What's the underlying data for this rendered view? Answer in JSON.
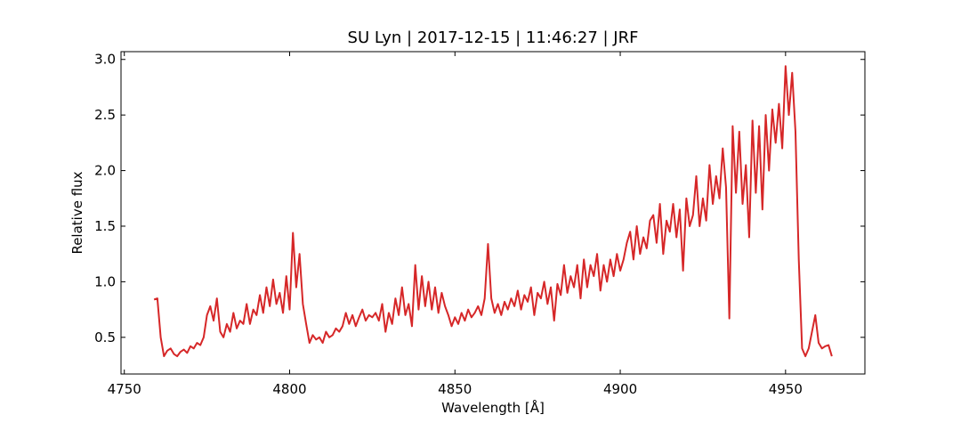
{
  "chart_data": {
    "type": "line",
    "title": "SU Lyn | 2017-12-15 | 11:46:27 | JRF",
    "xlabel": "Wavelength [Å]",
    "ylabel": "Relative flux",
    "xlim": [
      4749,
      4974
    ],
    "ylim": [
      0.17,
      3.07
    ],
    "xticks": [
      4750,
      4800,
      4850,
      4900,
      4950
    ],
    "yticks": [
      0.5,
      {
        "value": 1.0,
        "label": "1.0"
      },
      1.5,
      {
        "value": 2.0,
        "label": "2.0"
      },
      2.5,
      {
        "value": 3.0,
        "label": "3.0"
      }
    ],
    "grid": false,
    "series": [
      {
        "color": "#d62728",
        "x": [
          4759,
          4760,
          4761,
          4762,
          4763,
          4764,
          4765,
          4766,
          4767,
          4768,
          4769,
          4770,
          4771,
          4772,
          4773,
          4774,
          4775,
          4776,
          4777,
          4778,
          4779,
          4780,
          4781,
          4782,
          4783,
          4784,
          4785,
          4786,
          4787,
          4788,
          4789,
          4790,
          4791,
          4792,
          4793,
          4794,
          4795,
          4796,
          4797,
          4798,
          4799,
          4800,
          4801,
          4802,
          4803,
          4804,
          4805,
          4806,
          4807,
          4808,
          4809,
          4810,
          4811,
          4812,
          4813,
          4814,
          4815,
          4816,
          4817,
          4818,
          4819,
          4820,
          4821,
          4822,
          4823,
          4824,
          4825,
          4826,
          4827,
          4828,
          4829,
          4830,
          4831,
          4832,
          4833,
          4834,
          4835,
          4836,
          4837,
          4838,
          4839,
          4840,
          4841,
          4842,
          4843,
          4844,
          4845,
          4846,
          4847,
          4848,
          4849,
          4850,
          4851,
          4852,
          4853,
          4854,
          4855,
          4856,
          4857,
          4858,
          4859,
          4860,
          4861,
          4862,
          4863,
          4864,
          4865,
          4866,
          4867,
          4868,
          4869,
          4870,
          4871,
          4872,
          4873,
          4874,
          4875,
          4876,
          4877,
          4878,
          4879,
          4880,
          4881,
          4882,
          4883,
          4884,
          4885,
          4886,
          4887,
          4888,
          4889,
          4890,
          4891,
          4892,
          4893,
          4894,
          4895,
          4896,
          4897,
          4898,
          4899,
          4900,
          4901,
          4902,
          4903,
          4904,
          4905,
          4906,
          4907,
          4908,
          4909,
          4910,
          4911,
          4912,
          4913,
          4914,
          4915,
          4916,
          4917,
          4918,
          4919,
          4920,
          4921,
          4922,
          4923,
          4924,
          4925,
          4926,
          4927,
          4928,
          4929,
          4930,
          4931,
          4932,
          4933,
          4934,
          4935,
          4936,
          4937,
          4938,
          4939,
          4940,
          4941,
          4942,
          4943,
          4944,
          4945,
          4946,
          4947,
          4948,
          4949,
          4950,
          4951,
          4952,
          4953,
          4954,
          4955,
          4956,
          4957,
          4958,
          4959,
          4960,
          4961,
          4962,
          4963,
          4964
        ],
        "values": [
          0.84,
          0.85,
          0.5,
          0.33,
          0.38,
          0.4,
          0.35,
          0.33,
          0.37,
          0.39,
          0.36,
          0.42,
          0.4,
          0.45,
          0.43,
          0.5,
          0.7,
          0.78,
          0.65,
          0.85,
          0.55,
          0.5,
          0.62,
          0.55,
          0.72,
          0.58,
          0.65,
          0.62,
          0.8,
          0.62,
          0.75,
          0.7,
          0.88,
          0.72,
          0.95,
          0.78,
          1.02,
          0.8,
          0.9,
          0.72,
          1.05,
          0.75,
          1.44,
          0.95,
          1.25,
          0.8,
          0.62,
          0.45,
          0.52,
          0.48,
          0.5,
          0.45,
          0.55,
          0.5,
          0.52,
          0.58,
          0.55,
          0.6,
          0.72,
          0.62,
          0.7,
          0.6,
          0.68,
          0.75,
          0.65,
          0.7,
          0.68,
          0.72,
          0.65,
          0.8,
          0.55,
          0.72,
          0.62,
          0.85,
          0.7,
          0.95,
          0.7,
          0.8,
          0.6,
          1.15,
          0.75,
          1.05,
          0.78,
          1.0,
          0.75,
          0.95,
          0.72,
          0.9,
          0.78,
          0.7,
          0.6,
          0.68,
          0.62,
          0.72,
          0.65,
          0.75,
          0.68,
          0.72,
          0.78,
          0.7,
          0.85,
          1.34,
          0.85,
          0.72,
          0.8,
          0.7,
          0.82,
          0.75,
          0.85,
          0.78,
          0.92,
          0.75,
          0.88,
          0.82,
          0.95,
          0.7,
          0.9,
          0.85,
          1.0,
          0.8,
          0.95,
          0.65,
          0.98,
          0.88,
          1.15,
          0.9,
          1.05,
          0.95,
          1.15,
          0.85,
          1.2,
          0.95,
          1.15,
          1.05,
          1.25,
          0.92,
          1.15,
          1.0,
          1.2,
          1.05,
          1.25,
          1.1,
          1.2,
          1.35,
          1.45,
          1.2,
          1.5,
          1.25,
          1.4,
          1.3,
          1.55,
          1.6,
          1.35,
          1.7,
          1.25,
          1.55,
          1.45,
          1.7,
          1.4,
          1.65,
          1.1,
          1.75,
          1.5,
          1.6,
          1.95,
          1.5,
          1.75,
          1.55,
          2.05,
          1.7,
          1.95,
          1.75,
          2.2,
          1.85,
          0.67,
          2.4,
          1.8,
          2.35,
          1.7,
          2.05,
          1.4,
          2.45,
          1.8,
          2.4,
          1.65,
          2.5,
          2.0,
          2.55,
          2.25,
          2.6,
          2.2,
          2.94,
          2.5,
          2.88,
          2.35,
          1.2,
          0.4,
          0.33,
          0.4,
          0.55,
          0.7,
          0.45,
          0.4,
          0.42,
          0.43,
          0.33
        ]
      }
    ]
  }
}
